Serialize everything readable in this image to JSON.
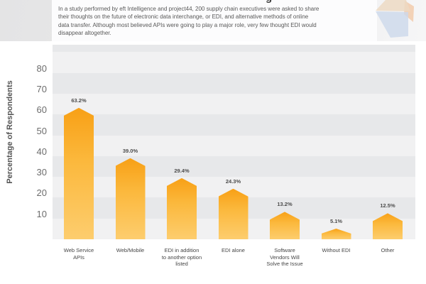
{
  "header": {
    "title_fragment": "g",
    "intro_lines": [
      "In a study performed by eft Intelligence and project44, 200 supply chain executives were asked to share",
      "their thoughts on the future of electronic data interchange, or EDI, and alternative methods of online",
      "data transfer. Although most believed APIs were going to play a major role, very few thought EDI would",
      "disappear altogether."
    ],
    "logo": {
      "name": "cube-logo",
      "colors": {
        "top_face": "#ecd9c3",
        "left_face": "#ccd8eb",
        "right_face": "#f2c6a2"
      }
    }
  },
  "chart_data": {
    "type": "bar",
    "title": "",
    "xlabel": "",
    "ylabel": "Percentage of Respondents",
    "categories": [
      "Web Service APIs",
      "Web/Mobile",
      "EDI in addition to another option listed",
      "EDI alone",
      "Software Vendors Will Solve the Issue",
      "Without EDI",
      "Other"
    ],
    "category_lines": [
      [
        "Web Service",
        "APIs"
      ],
      [
        "Web/Mobile"
      ],
      [
        "EDI in addition",
        "to another option",
        "listed"
      ],
      [
        "EDI alone"
      ],
      [
        "Software",
        "Vendors Will",
        "Solve the Issue"
      ],
      [
        "Without EDI"
      ],
      [
        "Other"
      ]
    ],
    "values": [
      63.2,
      39.0,
      29.4,
      24.3,
      13.2,
      5.1,
      12.5
    ],
    "value_labels": [
      "63.2%",
      "39.0%",
      "29.4%",
      "24.3%",
      "13.2%",
      "5.1%",
      "12.5%"
    ],
    "yticks": [
      10,
      20,
      30,
      40,
      50,
      60,
      70,
      80
    ],
    "ylim": [
      0,
      93
    ],
    "grid": "alternating-horizontal-bands",
    "legend_position": "none",
    "band_colors": [
      "#f1f1f2",
      "#e7e8ea"
    ],
    "bar_gradient_top": "#f8a016",
    "bar_gradient_mid": "#fbb83c",
    "bar_gradient_bottom": "#fdcd6e"
  }
}
